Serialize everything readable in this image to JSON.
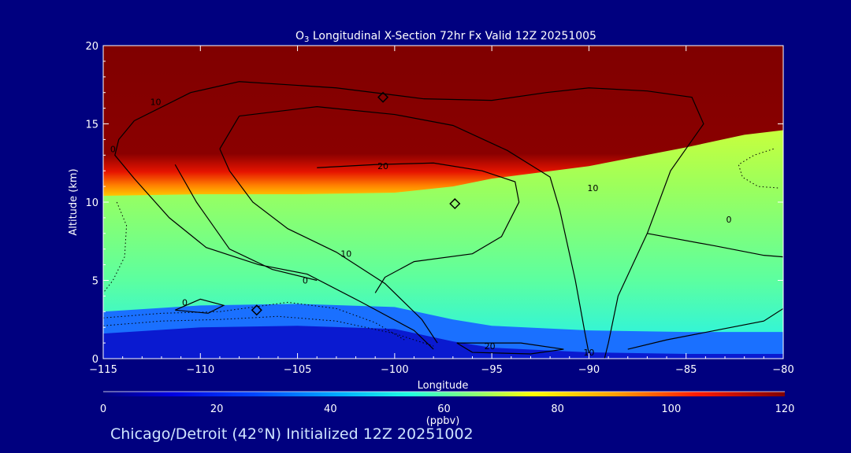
{
  "chart_data": {
    "type": "contour",
    "title_prefix": "O",
    "title_subscript": "3",
    "title_rest": " Longitudinal X-Section 72hr  Fx Valid 12Z 20251005",
    "xlabel": "Longitude",
    "ylabel": "Altitude (km)",
    "xlim": [
      -115,
      -80
    ],
    "ylim": [
      0,
      20
    ],
    "x_ticks": [
      -115,
      -110,
      -105,
      -100,
      -95,
      -90,
      -85,
      -80
    ],
    "x_tick_labels": [
      "−115",
      "−110",
      "−105",
      "−100",
      "−95",
      "−90",
      "−85",
      "−80"
    ],
    "y_ticks": [
      0,
      5,
      10,
      15,
      20
    ],
    "y_tick_labels": [
      "0",
      "5",
      "10",
      "15",
      "20"
    ],
    "filled_variable": "O3 mixing ratio",
    "colorbar": {
      "min": 0,
      "max": 120,
      "ticks": [
        0,
        20,
        40,
        60,
        80,
        100,
        120
      ],
      "tick_labels": [
        "0",
        "20",
        "40",
        "60",
        "80",
        "100",
        "120"
      ],
      "unit": "(ppbv)"
    },
    "band_boundaries": {
      "x": [
        -115,
        -110,
        -105,
        -100,
        -97,
        -95,
        -90,
        -85,
        -82,
        -80
      ],
      "stratosphere_bottom_km": [
        10.4,
        10.5,
        10.5,
        10.6,
        11.0,
        11.5,
        12.3,
        13.5,
        14.3,
        14.6
      ],
      "boundary_layer_top_km": [
        1.6,
        2.0,
        2.1,
        1.9,
        1.1,
        0.7,
        0.4,
        0.3,
        0.3,
        0.3
      ]
    },
    "contour_labels": [
      {
        "text": "10",
        "x": -112.3,
        "y": 16.2
      },
      {
        "text": "0",
        "x": -114.5,
        "y": 13.2
      },
      {
        "text": "20",
        "x": -100.6,
        "y": 12.1
      },
      {
        "text": "10",
        "x": -89.8,
        "y": 10.7
      },
      {
        "text": "0",
        "x": -82.8,
        "y": 8.7
      },
      {
        "text": "10",
        "x": -102.5,
        "y": 6.5
      },
      {
        "text": "0",
        "x": -104.6,
        "y": 4.8
      },
      {
        "text": "0",
        "x": -110.8,
        "y": 3.4
      },
      {
        "text": "20",
        "x": -95.1,
        "y": 0.6
      },
      {
        "text": "10",
        "x": -90.0,
        "y": 0.2
      }
    ],
    "contour_lines": [
      [
        [
          -110.5,
          17.0
        ],
        [
          -108.0,
          17.7
        ],
        [
          -103.0,
          17.3
        ],
        [
          -98.5,
          16.6
        ],
        [
          -95.0,
          16.5
        ],
        [
          -92.2,
          17.0
        ],
        [
          -90.0,
          17.3
        ],
        [
          -87.0,
          17.1
        ],
        [
          -84.7,
          16.7
        ],
        [
          -84.1,
          15.0
        ],
        [
          -85.8,
          12.0
        ],
        [
          -87.0,
          8.0
        ],
        [
          -88.5,
          4.0
        ],
        [
          -89.0,
          1.0
        ],
        [
          -89.2,
          0.0
        ]
      ],
      [
        [
          -108.0,
          15.5
        ],
        [
          -104.0,
          16.1
        ],
        [
          -100.0,
          15.6
        ],
        [
          -97.0,
          14.9
        ],
        [
          -94.2,
          13.3
        ],
        [
          -92.0,
          11.6
        ],
        [
          -91.5,
          9.5
        ],
        [
          -90.7,
          5.0
        ],
        [
          -90.2,
          1.6
        ],
        [
          -90.0,
          0.3
        ]
      ],
      [
        [
          -109.0,
          13.4
        ],
        [
          -108.0,
          15.5
        ]
      ],
      [
        [
          -113.4,
          15.2
        ],
        [
          -110.5,
          17.0
        ]
      ],
      [
        [
          -113.4,
          15.2
        ],
        [
          -114.2,
          14.0
        ],
        [
          -114.4,
          13.0
        ],
        [
          -113.4,
          11.5
        ],
        [
          -111.6,
          9.0
        ],
        [
          -109.7,
          7.1
        ],
        [
          -107.0,
          6.0
        ],
        [
          -104.5,
          5.4
        ],
        [
          -101.7,
          3.6
        ],
        [
          -99.0,
          1.8
        ],
        [
          -98.0,
          0.6
        ]
      ],
      [
        [
          -111.3,
          12.4
        ],
        [
          -110.2,
          10.0
        ],
        [
          -108.5,
          7.0
        ],
        [
          -106.3,
          5.7
        ],
        [
          -104.0,
          5.0
        ]
      ],
      [
        [
          -109.0,
          13.4
        ],
        [
          -108.5,
          12.0
        ],
        [
          -107.3,
          10.0
        ],
        [
          -105.5,
          8.3
        ],
        [
          -103.0,
          6.8
        ],
        [
          -100.5,
          4.8
        ],
        [
          -98.6,
          2.5
        ],
        [
          -97.8,
          1.0
        ]
      ],
      [
        [
          -104.0,
          12.2
        ],
        [
          -101.0,
          12.4
        ],
        [
          -98.0,
          12.5
        ],
        [
          -95.5,
          12.0
        ],
        [
          -93.8,
          11.3
        ],
        [
          -93.6,
          10.0
        ],
        [
          -94.5,
          7.8
        ],
        [
          -96.0,
          6.7
        ],
        [
          -99.0,
          6.2
        ],
        [
          -100.5,
          5.2
        ],
        [
          -101.0,
          4.2
        ]
      ],
      [
        [
          -87.0,
          8.0
        ],
        [
          -83.5,
          7.2
        ],
        [
          -81.0,
          6.6
        ],
        [
          -80.0,
          6.5
        ]
      ],
      [
        [
          -80.0,
          3.2
        ],
        [
          -81.0,
          2.4
        ],
        [
          -83.5,
          1.8
        ],
        [
          -86.0,
          1.2
        ],
        [
          -88.0,
          0.6
        ]
      ],
      [
        [
          -96.8,
          1.0
        ],
        [
          -93.5,
          1.0
        ],
        [
          -91.3,
          0.6
        ],
        [
          -93.0,
          0.3
        ],
        [
          -96.0,
          0.4
        ],
        [
          -96.8,
          1.0
        ]
      ],
      [
        [
          -111.3,
          3.1
        ],
        [
          -110.0,
          3.8
        ],
        [
          -108.8,
          3.4
        ],
        [
          -109.6,
          2.9
        ],
        [
          -111.3,
          3.1
        ]
      ]
    ],
    "dashed_lines": [
      [
        [
          -115.0,
          2.1
        ],
        [
          -112.0,
          2.4
        ],
        [
          -109.0,
          2.5
        ],
        [
          -106.0,
          2.7
        ],
        [
          -103.0,
          2.4
        ],
        [
          -100.0,
          1.6
        ],
        [
          -98.0,
          0.8
        ]
      ],
      [
        [
          -115.0,
          2.6
        ],
        [
          -112.0,
          2.9
        ],
        [
          -109.0,
          3.0
        ],
        [
          -105.5,
          3.6
        ],
        [
          -103.0,
          3.2
        ],
        [
          -101.0,
          2.3
        ],
        [
          -99.5,
          1.2
        ]
      ],
      [
        [
          -114.3,
          10.0
        ],
        [
          -113.8,
          8.5
        ],
        [
          -113.9,
          6.5
        ],
        [
          -114.5,
          5.0
        ],
        [
          -115.0,
          4.2
        ]
      ],
      [
        [
          -80.5,
          13.4
        ],
        [
          -81.5,
          13.0
        ],
        [
          -82.3,
          12.4
        ],
        [
          -82.1,
          11.6
        ],
        [
          -81.3,
          11.0
        ],
        [
          -80.2,
          10.9
        ]
      ]
    ],
    "diamonds": [
      {
        "x": -96.9,
        "y": 9.9
      },
      {
        "x": -100.6,
        "y": 16.7
      },
      {
        "x": -107.1,
        "y": 3.1
      }
    ]
  },
  "footer_text": "Chicago/Detroit (42°N) Initialized 12Z 20251002",
  "colors": {
    "background": "#00007f",
    "text": "#ffffff",
    "footer": "#cfe4ff",
    "contour": "#000000"
  }
}
